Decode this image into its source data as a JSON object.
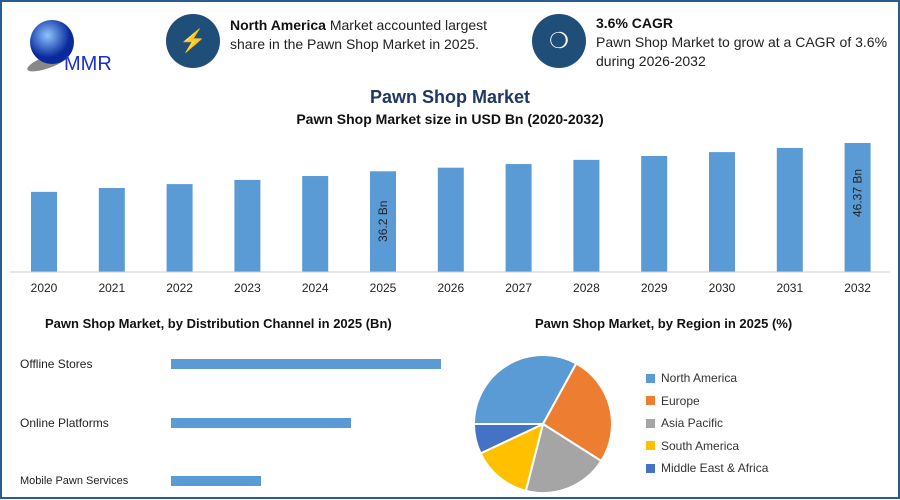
{
  "header": {
    "logo_text": "MMR",
    "info1": {
      "bold": "North America",
      "text": " Market accounted largest share in the Pawn Shop Market in 2025.",
      "icon": "lightning-icon"
    },
    "info2": {
      "bold": "3.6% CAGR",
      "text": "Pawn Shop Market to grow at a CAGR of 3.6% during 2026-2032",
      "icon": "growth-icon"
    }
  },
  "title": "Pawn Shop Market",
  "colors": {
    "bar": "#5b9bd5",
    "accent": "#1f4e79"
  },
  "chart_data": [
    {
      "type": "bar",
      "title": "Pawn Shop Market size in USD Bn (2020-2032)",
      "categories": [
        "2020",
        "2021",
        "2022",
        "2023",
        "2024",
        "2025",
        "2026",
        "2027",
        "2028",
        "2029",
        "2030",
        "2031",
        "2032"
      ],
      "values": [
        28.8,
        30.2,
        31.6,
        33.1,
        34.5,
        36.2,
        37.5,
        38.8,
        40.3,
        41.7,
        43.1,
        44.6,
        46.37
      ],
      "data_labels": {
        "2025": "36.2 Bn",
        "2032": "46.37 Bn"
      },
      "grid": false
    },
    {
      "type": "bar",
      "orientation": "horizontal",
      "title": "Pawn Shop Market, by Distribution Channel in 2025 (Bn)",
      "categories": [
        "Offline Stores",
        "Online Platforms",
        "Mobile Pawn Services"
      ],
      "values": [
        18.1,
        12.07,
        6.03
      ]
    },
    {
      "type": "pie",
      "title": "Pawn Shop Market, by Region in 2025 (%)",
      "categories": [
        "North America",
        "Europe",
        "Asia Pacific",
        "South America",
        "Middle East & Africa"
      ],
      "values": [
        33,
        26,
        20,
        14,
        7
      ],
      "colors": [
        "#5b9bd5",
        "#ed7d31",
        "#a5a5a5",
        "#ffc000",
        "#4472c4"
      ],
      "legend": "right"
    }
  ]
}
